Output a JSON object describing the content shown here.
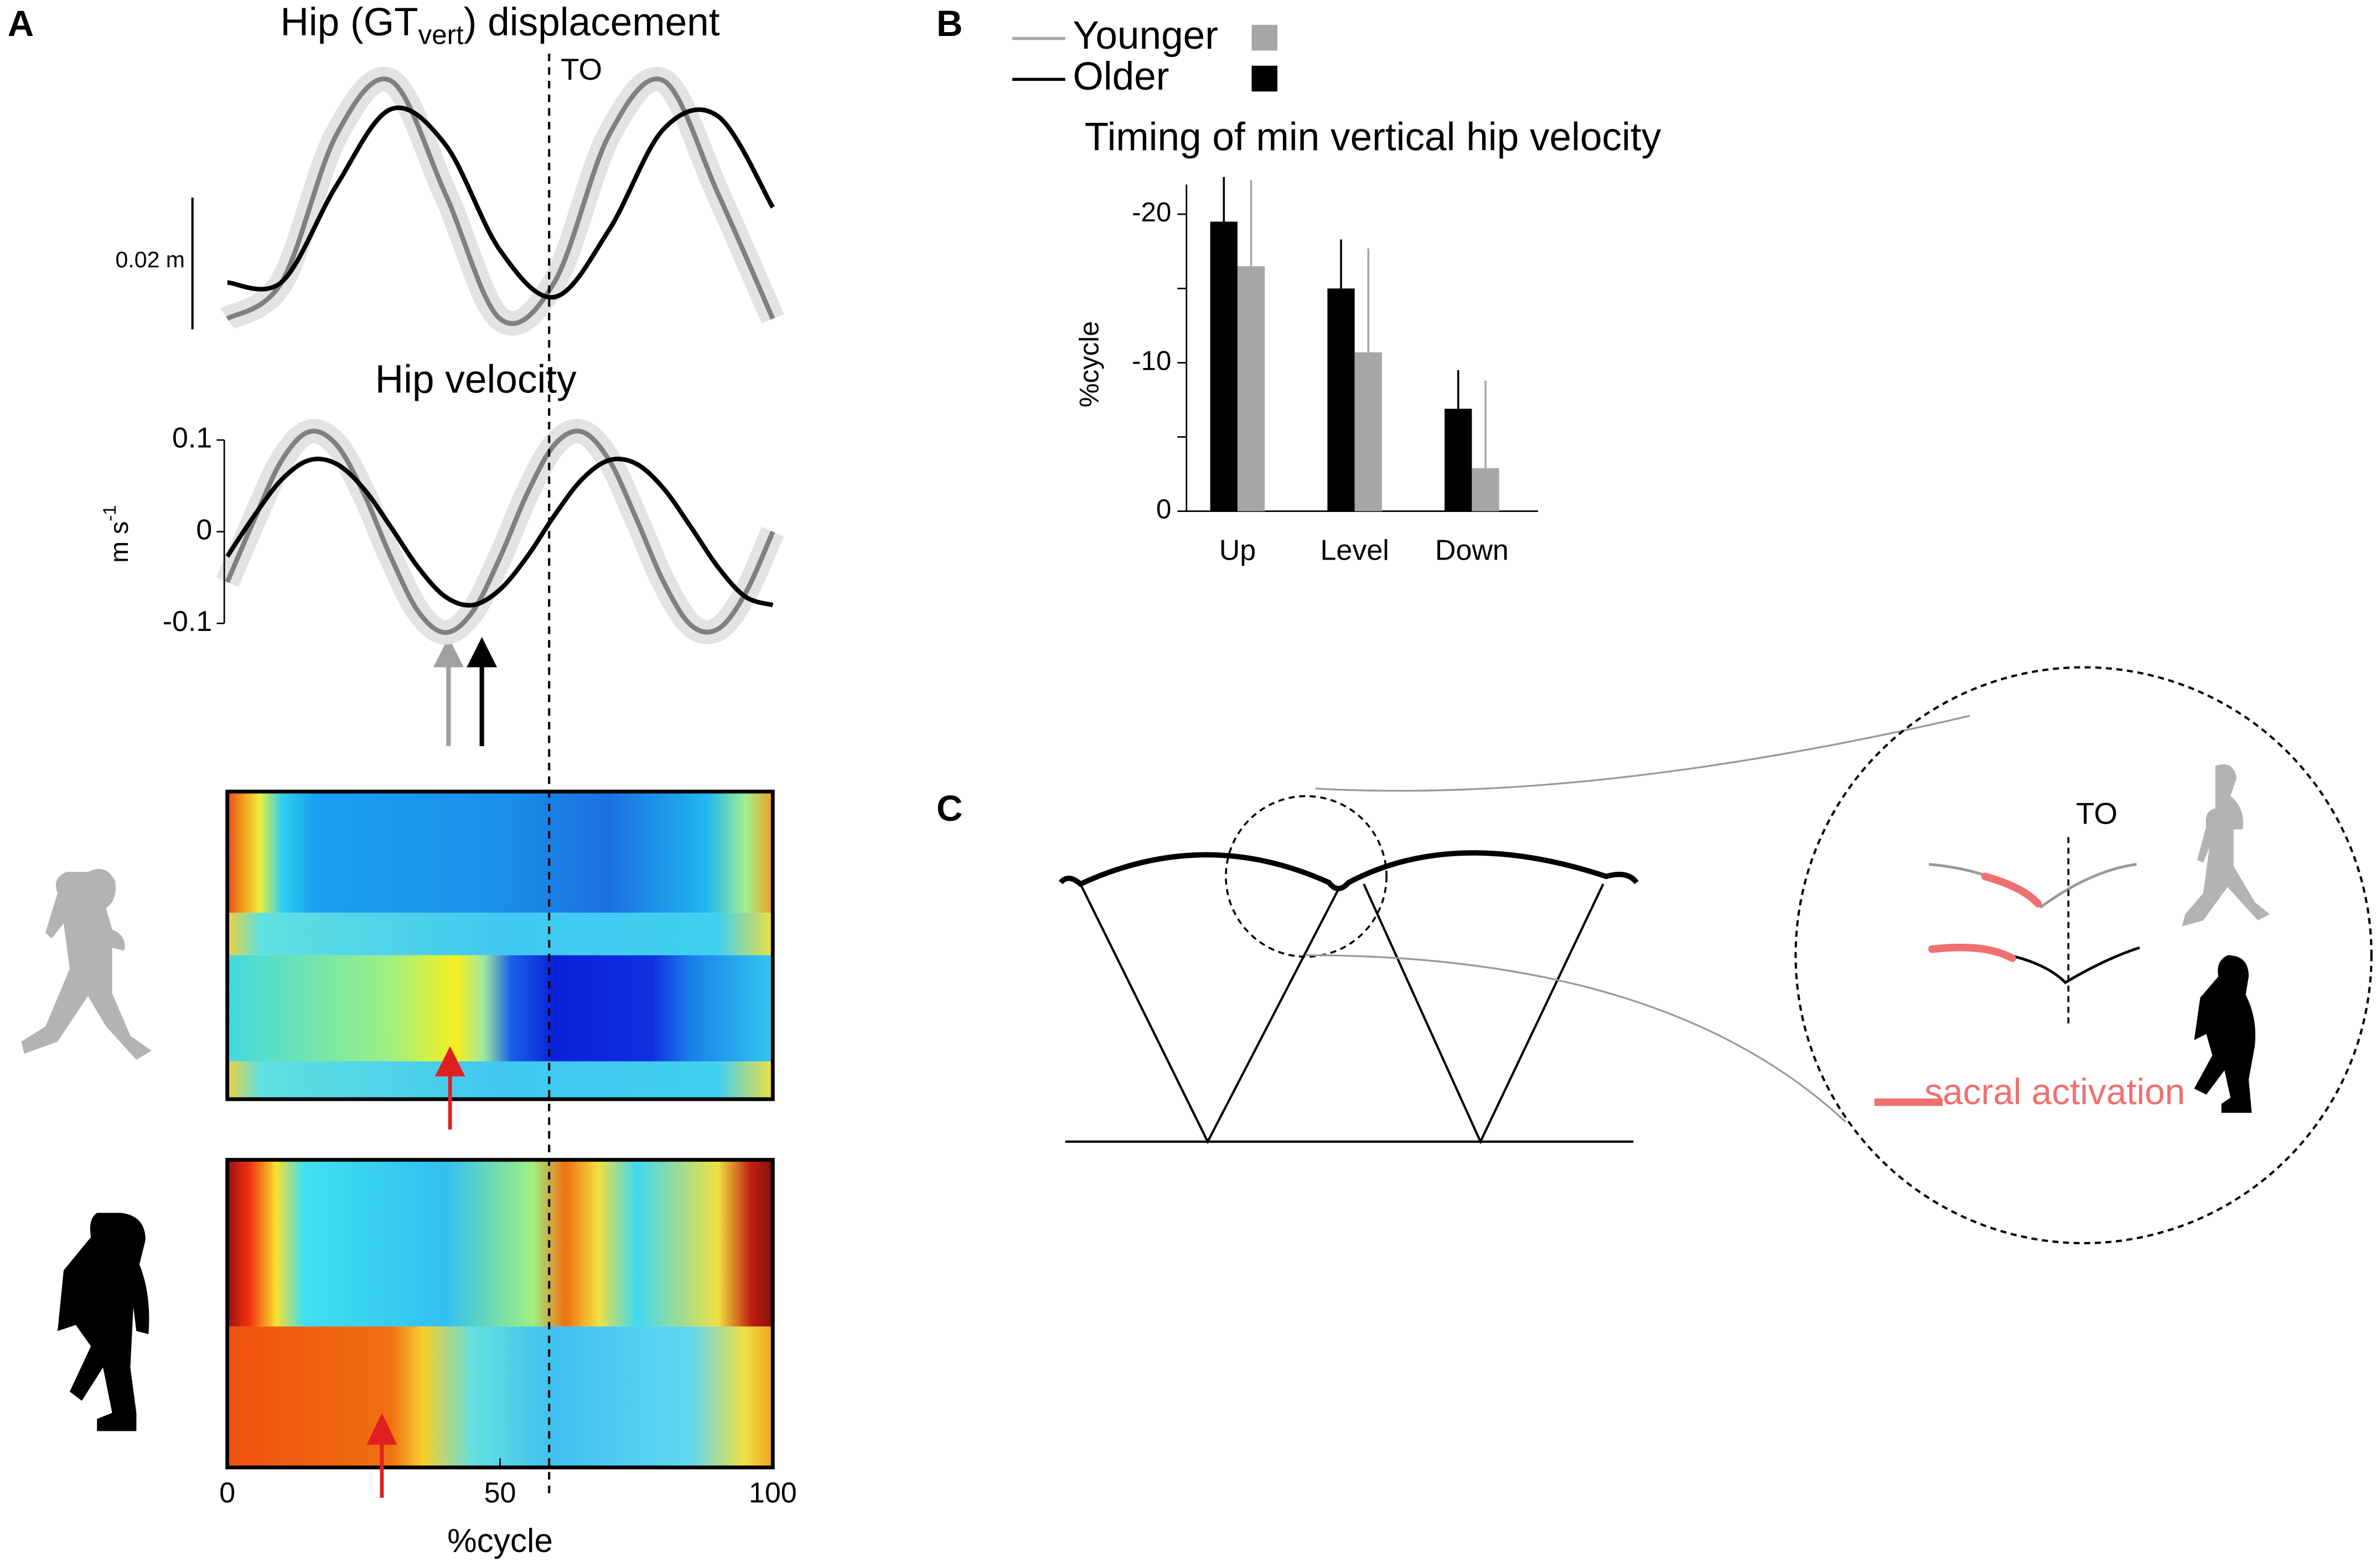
{
  "panel_labels": [
    "A",
    "B",
    "C"
  ],
  "panel_a": {
    "displacement_title": {
      "before": "Hip (GT",
      "sub": "vert",
      "after": ") displacement"
    },
    "to_label": "TO",
    "to_percent": 59,
    "scale_bar": {
      "value": 0.02,
      "label": "0.02 m"
    },
    "displacement": {
      "x": [
        0,
        10,
        20,
        30,
        40,
        50,
        60,
        70,
        80,
        90,
        100
      ],
      "series": [
        {
          "name": "Younger",
          "color": "#808080",
          "values": [
            -0.0177,
            -0.0121,
            0.0102,
            0.0184,
            0.0012,
            -0.0177,
            -0.0121,
            0.0102,
            0.0184,
            0.0012,
            -0.0177
          ]
        },
        {
          "name": "Older",
          "color": "#000000",
          "values": [
            -0.0122,
            -0.0121,
            0.0025,
            0.0141,
            0.0087,
            -0.0073,
            -0.0144,
            -0.0042,
            0.0111,
            0.013,
            -0.0008
          ]
        }
      ]
    },
    "velocity": {
      "title": "Hip velocity",
      "ylabel": {
        "base": "m s",
        "sup": "-1"
      },
      "ylim": [
        -0.1,
        0.1
      ],
      "yticks": [
        0.1,
        0,
        -0.1
      ],
      "x": [
        0,
        5,
        10,
        15,
        20,
        25,
        30,
        35,
        40,
        45,
        50,
        55,
        60,
        65,
        70,
        75,
        80,
        85,
        90,
        95,
        100
      ],
      "series": [
        {
          "name": "Younger",
          "color": "#808080",
          "values": [
            -0.055,
            0.014,
            0.078,
            0.109,
            0.095,
            0.042,
            -0.028,
            -0.087,
            -0.11,
            -0.087,
            -0.028,
            0.042,
            0.095,
            0.109,
            0.078,
            0.014,
            -0.055,
            -0.102,
            -0.106,
            -0.067,
            0.0
          ]
        },
        {
          "name": "Older",
          "color": "#000000",
          "values": [
            -0.027,
            0.018,
            0.057,
            0.078,
            0.074,
            0.047,
            0.005,
            -0.039,
            -0.071,
            -0.08,
            -0.063,
            -0.027,
            0.018,
            0.057,
            0.078,
            0.074,
            0.047,
            0.005,
            -0.039,
            -0.071,
            -0.08
          ]
        }
      ]
    },
    "xlim": [
      0,
      100
    ],
    "xticks": [
      0,
      50,
      100
    ],
    "xlabel": "%cycle"
  },
  "chart_data": {
    "type": "bar",
    "title": "Timing of min vertical hip velocity",
    "ylabel": "%cycle",
    "categories": [
      "Up",
      "Level",
      "Down"
    ],
    "series": [
      {
        "name": "Older",
        "color": "#000000",
        "values": [
          -19.5,
          -15,
          -6.9
        ],
        "errors": [
          3,
          3.3,
          2.6
        ]
      },
      {
        "name": "Younger",
        "color": "#a6a6a6",
        "values": [
          -16.5,
          -10.7,
          -2.9
        ],
        "errors": [
          5.8,
          7,
          5.9
        ]
      }
    ],
    "ylim": [
      0,
      -22
    ],
    "yticks": [
      0,
      -10,
      -20
    ],
    "yminor_ticks": [
      -5,
      -15
    ],
    "legend": "top-left"
  },
  "panel_c": {
    "to_label": "TO",
    "activation_label": "sacral activation"
  }
}
